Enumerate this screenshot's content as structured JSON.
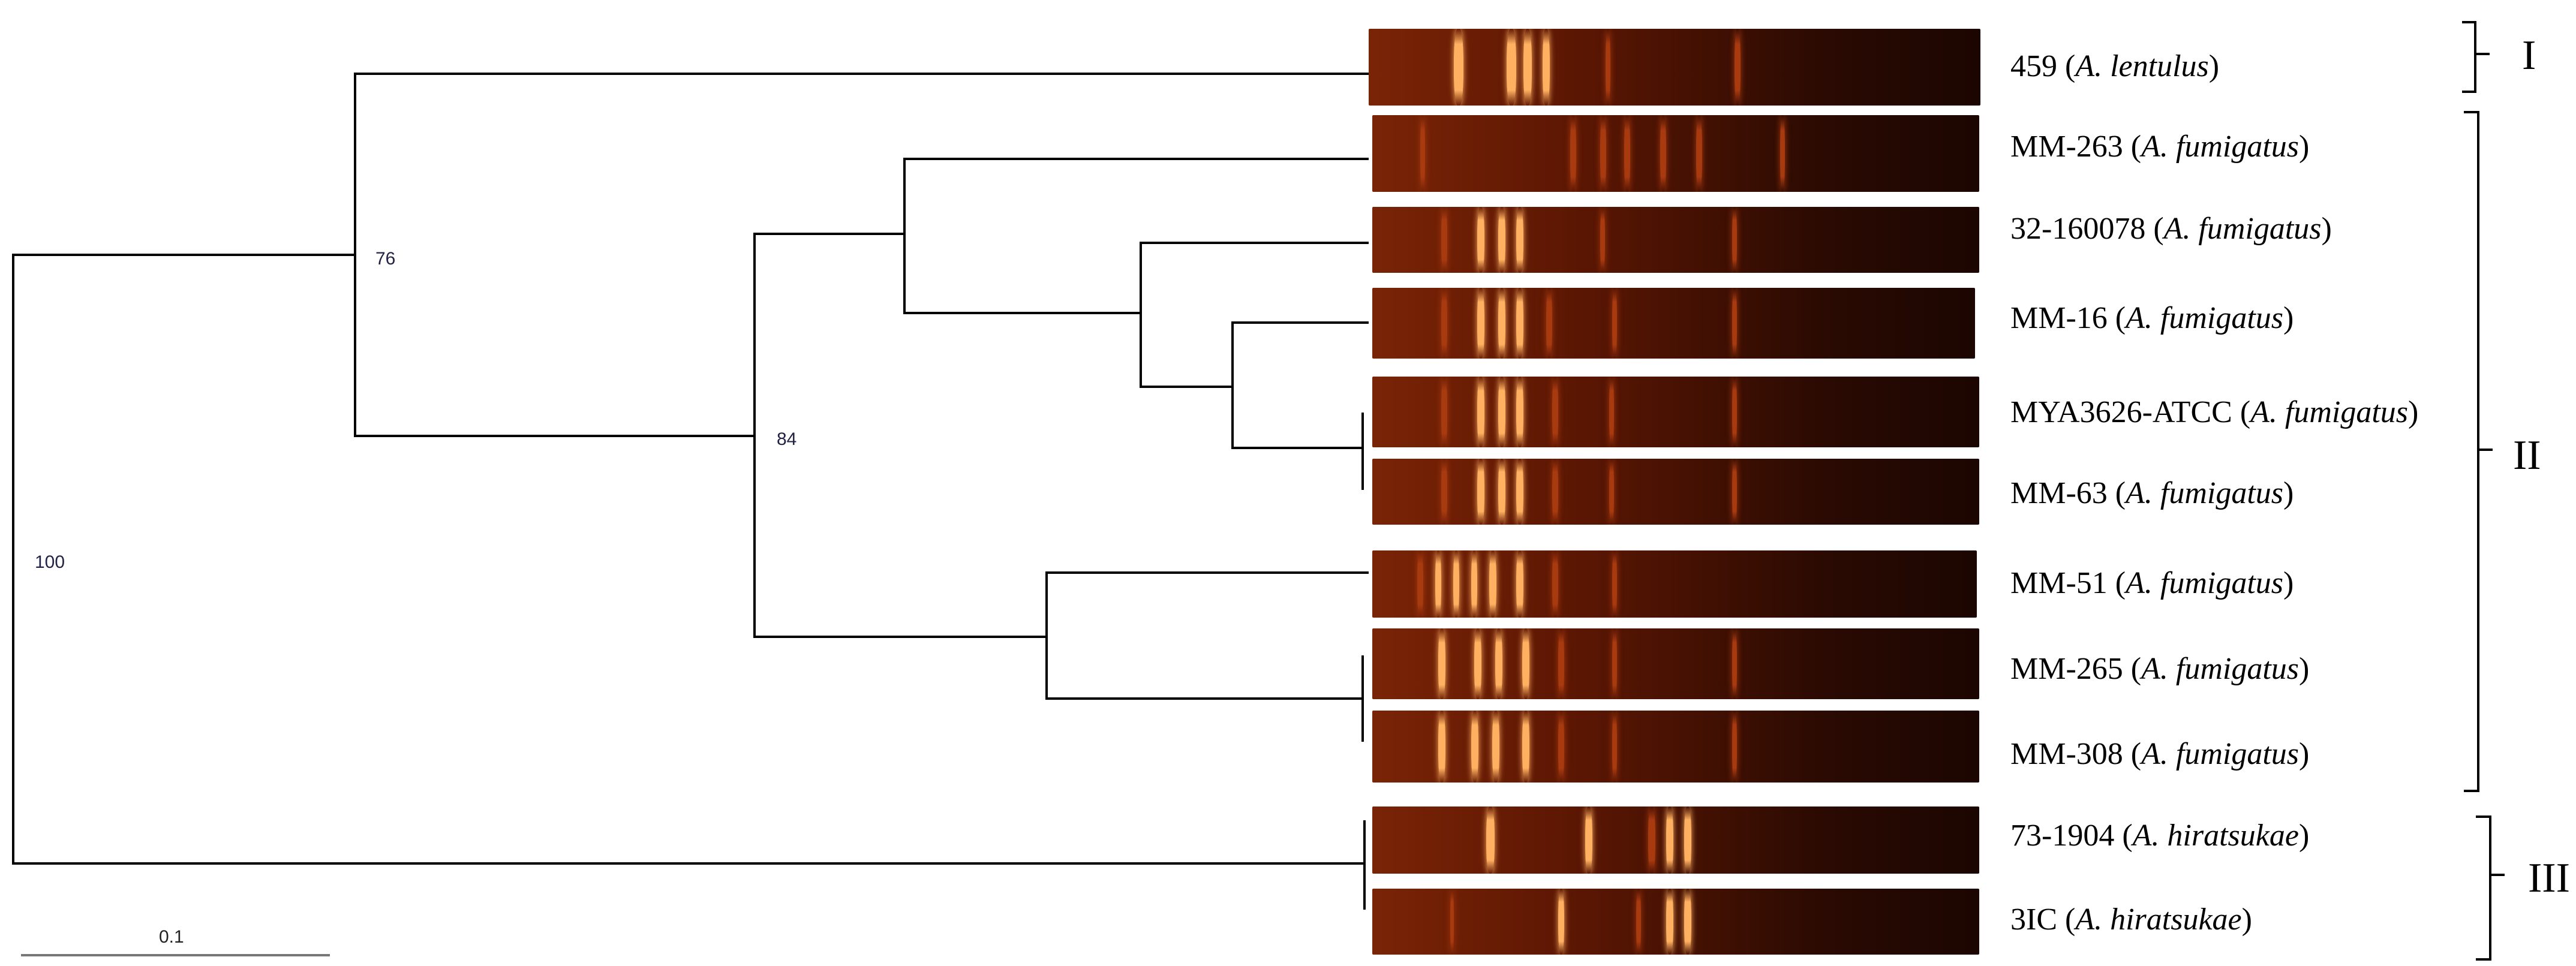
{
  "bootstrap_values": [
    "100",
    "76",
    "84"
  ],
  "scale_bar_label": "0.1",
  "taxa": [
    {
      "prefix": "459 (",
      "species": "A. lentulus",
      "suffix": ")"
    },
    {
      "prefix": "MM-263 (",
      "species": "A. fumigatus",
      "suffix": ")"
    },
    {
      "prefix": " 32-160078 (",
      "species": "A. fumigatus",
      "suffix": ")"
    },
    {
      "prefix": "MM-16 (",
      "species": "A. fumigatus",
      "suffix": ")"
    },
    {
      "prefix": "MYA3626-ATCC (",
      "species": "A. fumigatus",
      "suffix": ")"
    },
    {
      "prefix": "MM-63 (",
      "species": "A. fumigatus",
      "suffix": ")"
    },
    {
      "prefix": "MM-51 (",
      "species": "A. fumigatus",
      "suffix": ")"
    },
    {
      "prefix": "MM-265 (",
      "species": "A. fumigatus",
      "suffix": ")"
    },
    {
      "prefix": "MM-308 (",
      "species": "A. fumigatus",
      "suffix": ")"
    },
    {
      "prefix": "73-1904 (",
      "species": "A. hiratsukae",
      "suffix": ")"
    },
    {
      "prefix": "3IC (",
      "species": "A. hiratsukae",
      "suffix": ")"
    }
  ],
  "groups": [
    {
      "label": "I"
    },
    {
      "label": "II"
    },
    {
      "label": "III"
    }
  ],
  "colors": {
    "gel_background": "#2a0a02",
    "band_bright": "#ffb060",
    "band_dim": "#a83a10"
  }
}
